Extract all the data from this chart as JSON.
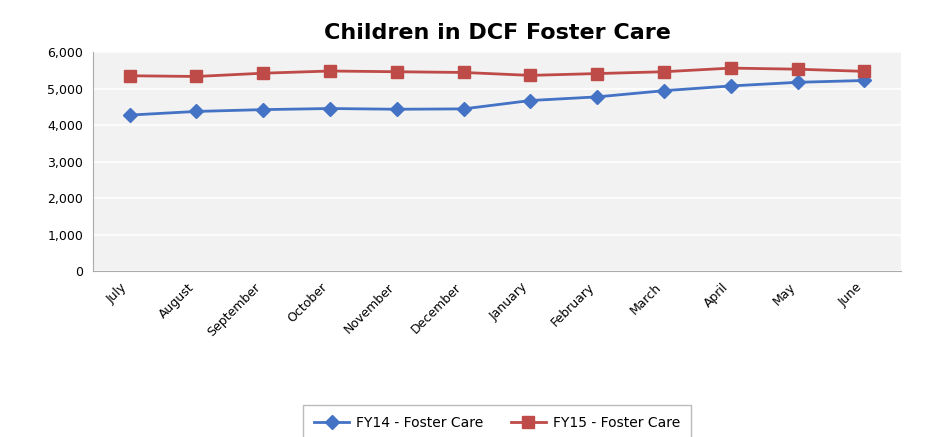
{
  "title": "Children in DCF Foster Care",
  "months": [
    "July",
    "August",
    "September",
    "October",
    "November",
    "December",
    "January",
    "February",
    "March",
    "April",
    "May",
    "June"
  ],
  "fy14": [
    4280,
    4380,
    4430,
    4460,
    4440,
    4450,
    4680,
    4780,
    4950,
    5080,
    5180,
    5230
  ],
  "fy15": [
    5360,
    5340,
    5430,
    5490,
    5470,
    5450,
    5370,
    5420,
    5470,
    5570,
    5540,
    5480
  ],
  "fy14_color": "#4472C4",
  "fy15_color": "#BE4B48",
  "fy14_label": "FY14 - Foster Care",
  "fy15_label": "FY15 - Foster Care",
  "ylim": [
    0,
    6000
  ],
  "yticks": [
    0,
    1000,
    2000,
    3000,
    4000,
    5000,
    6000
  ],
  "title_fontsize": 16,
  "background_color": "#FFFFFF",
  "plot_bg_color": "#F2F2F2",
  "grid_color": "#FFFFFF"
}
